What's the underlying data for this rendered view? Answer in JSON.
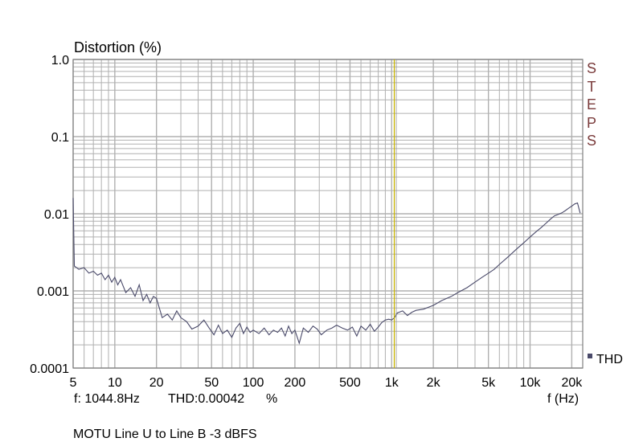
{
  "chart_data": {
    "type": "line",
    "title": "Distortion (%)",
    "xlabel": "f (Hz)",
    "ylabel": "Distortion (%)",
    "x_scale": "log",
    "y_scale": "log",
    "xlim": [
      5,
      24000
    ],
    "ylim": [
      0.0001,
      1.0
    ],
    "x_ticks": [
      5,
      10,
      20,
      50,
      100,
      200,
      500,
      1000,
      2000,
      5000,
      10000,
      20000
    ],
    "x_tick_labels": [
      "5",
      "10",
      "20",
      "50",
      "100",
      "200",
      "500",
      "1k",
      "2k",
      "5k",
      "10k",
      "20k"
    ],
    "y_ticks": [
      0.0001,
      0.001,
      0.01,
      0.1,
      1.0
    ],
    "y_tick_labels": [
      "0.0001",
      "0.001",
      "0.01",
      "0.1",
      "1.0"
    ],
    "grid": true,
    "cursor_x": 1044.8,
    "series": [
      {
        "name": "THD",
        "color": "#4a4a6a",
        "x": [
          5,
          5.1,
          5.5,
          6,
          6.5,
          7,
          7.5,
          8,
          8.5,
          9,
          9.5,
          10,
          10.5,
          11,
          12,
          13,
          14,
          15,
          16,
          17,
          18,
          19,
          20,
          22,
          24,
          26,
          28,
          30,
          33,
          36,
          40,
          44,
          48,
          52,
          56,
          60,
          65,
          70,
          75,
          80,
          85,
          90,
          95,
          100,
          110,
          120,
          130,
          140,
          150,
          160,
          170,
          180,
          190,
          200,
          215,
          230,
          250,
          270,
          290,
          310,
          340,
          370,
          400,
          440,
          480,
          520,
          560,
          600,
          650,
          700,
          750,
          800,
          850,
          900,
          950,
          1000,
          1050,
          1100,
          1200,
          1300,
          1400,
          1500,
          1700,
          2000,
          2300,
          2700,
          3000,
          3500,
          4000,
          4500,
          5000,
          5500,
          6000,
          7000,
          8000,
          9000,
          10000,
          11000,
          12000,
          13000,
          14000,
          15000,
          16000,
          17000,
          18000,
          19000,
          20000,
          21000,
          22000,
          23000
        ],
        "values": [
          0.016,
          0.0021,
          0.0019,
          0.002,
          0.0017,
          0.0018,
          0.0016,
          0.0017,
          0.0014,
          0.0016,
          0.0013,
          0.0015,
          0.0012,
          0.0014,
          0.00095,
          0.0011,
          0.00085,
          0.0012,
          0.00075,
          0.0009,
          0.0007,
          0.00085,
          0.0008,
          0.00045,
          0.0005,
          0.00042,
          0.00055,
          0.00045,
          0.0004,
          0.00032,
          0.00035,
          0.00042,
          0.00033,
          0.00027,
          0.00036,
          0.00028,
          0.00031,
          0.00025,
          0.00033,
          0.00038,
          0.00028,
          0.00034,
          0.00029,
          0.00031,
          0.00028,
          0.00033,
          0.00027,
          0.00031,
          0.00029,
          0.00033,
          0.00026,
          0.00035,
          0.00028,
          0.00031,
          0.00021,
          0.00033,
          0.00029,
          0.00035,
          0.00032,
          0.00027,
          0.00031,
          0.00033,
          0.00036,
          0.00033,
          0.00031,
          0.00034,
          0.00026,
          0.00035,
          0.00031,
          0.00037,
          0.0003,
          0.00034,
          0.00039,
          0.00042,
          0.00043,
          0.00042,
          0.00045,
          0.00052,
          0.00055,
          0.00048,
          0.00053,
          0.00056,
          0.00058,
          0.00065,
          0.00075,
          0.00085,
          0.00095,
          0.0011,
          0.0013,
          0.0015,
          0.0017,
          0.0019,
          0.0022,
          0.0028,
          0.0035,
          0.0042,
          0.005,
          0.0058,
          0.0066,
          0.0075,
          0.0085,
          0.0094,
          0.0098,
          0.0103,
          0.011,
          0.0118,
          0.0126,
          0.0134,
          0.0138,
          0.0102
        ]
      }
    ],
    "cursor_readout": {
      "freq_label": "f: 1044.8Hz",
      "thd_label": "THD:0.00042",
      "unit": "%"
    },
    "side_label": "STEPS",
    "legend_label": "THD",
    "footer": "MOTU Line U to Line B -3 dBFS"
  },
  "colors": {
    "background": "#ffffff",
    "grid": "#b0b0b0",
    "axis": "#808080",
    "curve": "#4a4a6a",
    "cursor": "#c8b400",
    "steps": "#7a3b3b",
    "legend_marker": "#4a4a6a"
  }
}
